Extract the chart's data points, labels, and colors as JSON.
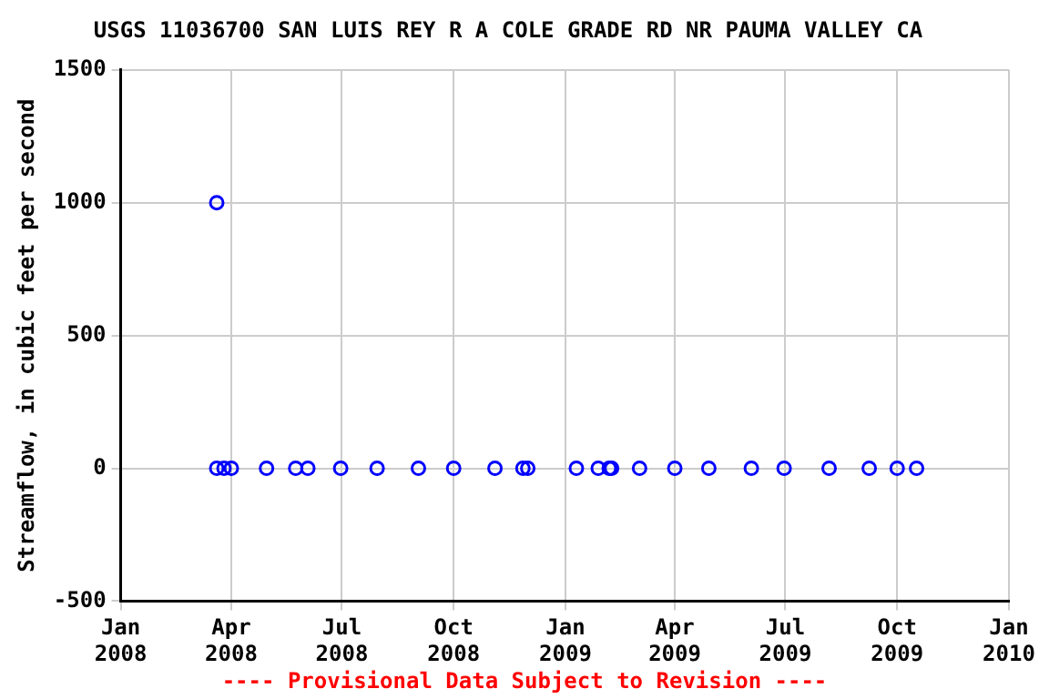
{
  "chart_data": {
    "type": "scatter",
    "title": "USGS 11036700 SAN LUIS REY R A COLE GRADE RD NR PAUMA VALLEY CA",
    "ylabel": "Streamflow, in cubic feet per second",
    "annotations": [
      "---- Provisional Data Subject to Revision ----"
    ],
    "x": [
      "2008-03-20",
      "2008-03-20",
      "2008-03-26",
      "2008-04-01",
      "2008-04-30",
      "2008-05-24",
      "2008-06-03",
      "2008-06-30",
      "2008-07-30",
      "2008-09-02",
      "2008-10-01",
      "2008-11-04",
      "2008-11-27",
      "2008-12-01",
      "2009-01-10",
      "2009-01-28",
      "2009-02-06",
      "2009-02-08",
      "2009-03-03",
      "2009-04-01",
      "2009-04-29",
      "2009-06-03",
      "2009-06-30",
      "2009-08-06",
      "2009-09-08",
      "2009-10-01",
      "2009-10-17"
    ],
    "values": [
      1000,
      0,
      0,
      0,
      0,
      0,
      0,
      0,
      0,
      0,
      0,
      0,
      0,
      0,
      0,
      0,
      0,
      0,
      0,
      0,
      0,
      0,
      0,
      0,
      0,
      0,
      0
    ],
    "color": "#0000ff",
    "marker": "circle",
    "xlim": [
      "2008-01-01",
      "2010-01-01"
    ],
    "xticks": [
      {
        "value": "2008-01-01",
        "label": "Jan 2008"
      },
      {
        "value": "2008-04-01",
        "label": "Apr 2008"
      },
      {
        "value": "2008-07-01",
        "label": "Jul 2008"
      },
      {
        "value": "2008-10-01",
        "label": "Oct 2008"
      },
      {
        "value": "2009-01-01",
        "label": "Jan 2009"
      },
      {
        "value": "2009-04-01",
        "label": "Apr 2009"
      },
      {
        "value": "2009-07-01",
        "label": "Jul 2009"
      },
      {
        "value": "2009-10-01",
        "label": "Oct 2009"
      },
      {
        "value": "2010-01-01",
        "label": "Jan 2010"
      }
    ],
    "ylim": [
      -500,
      1500
    ],
    "yticks": [
      -500,
      0,
      500,
      1000,
      1500
    ],
    "grid": true,
    "legend": false
  }
}
